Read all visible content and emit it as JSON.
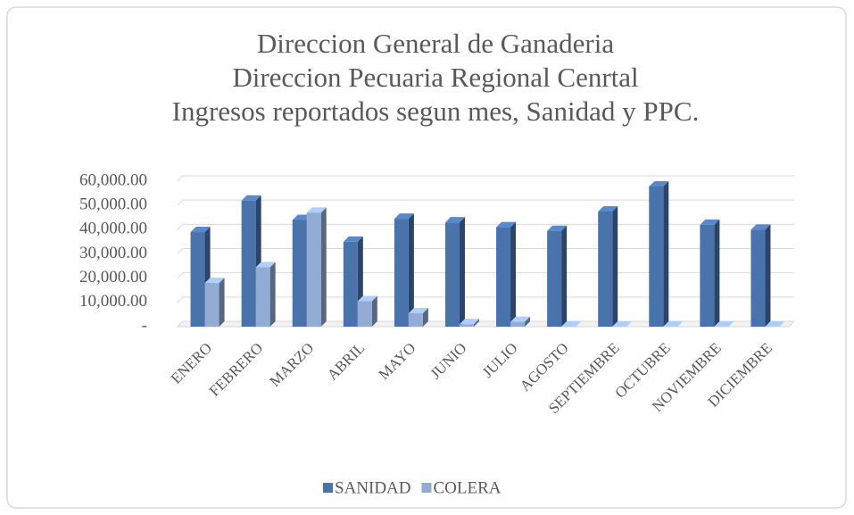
{
  "chart_data": {
    "type": "bar3d",
    "title": [
      "Direccion General de Ganaderia",
      "Direccion Pecuaria Regional Cenrtal",
      "Ingresos reportados segun mes, Sanidad y PPC."
    ],
    "categories": [
      "ENERO",
      "FEBRERO",
      "MARZO",
      "ABRIL",
      "MAYO",
      "JUNIO",
      "JULIO",
      "AGOSTO",
      "SEPTIEMBRE",
      "OCTUBRE",
      "NOVIEMBRE",
      "DICIEMBRE"
    ],
    "series": [
      {
        "name": "SANIDAD",
        "color": "#4a72ab",
        "values": [
          39000,
          52000,
          44000,
          35000,
          44500,
          43000,
          41000,
          39500,
          47500,
          57800,
          42000,
          40000
        ]
      },
      {
        "name": "COLERA",
        "color": "#93acd3",
        "values": [
          18000,
          24500,
          47000,
          10500,
          5500,
          1000,
          2000,
          0,
          0,
          0,
          0,
          0
        ]
      }
    ],
    "ylim": [
      0,
      60000
    ],
    "yticks": [
      {
        "value": 0,
        "label": "-"
      },
      {
        "value": 10000,
        "label": "10,000.00"
      },
      {
        "value": 20000,
        "label": "20,000.00"
      },
      {
        "value": 30000,
        "label": "30,000.00"
      },
      {
        "value": 40000,
        "label": "40,000.00"
      },
      {
        "value": 50000,
        "label": "50,000.00"
      },
      {
        "value": 60000,
        "label": "60,000.00"
      }
    ],
    "grid": true,
    "legend": "bottom"
  }
}
